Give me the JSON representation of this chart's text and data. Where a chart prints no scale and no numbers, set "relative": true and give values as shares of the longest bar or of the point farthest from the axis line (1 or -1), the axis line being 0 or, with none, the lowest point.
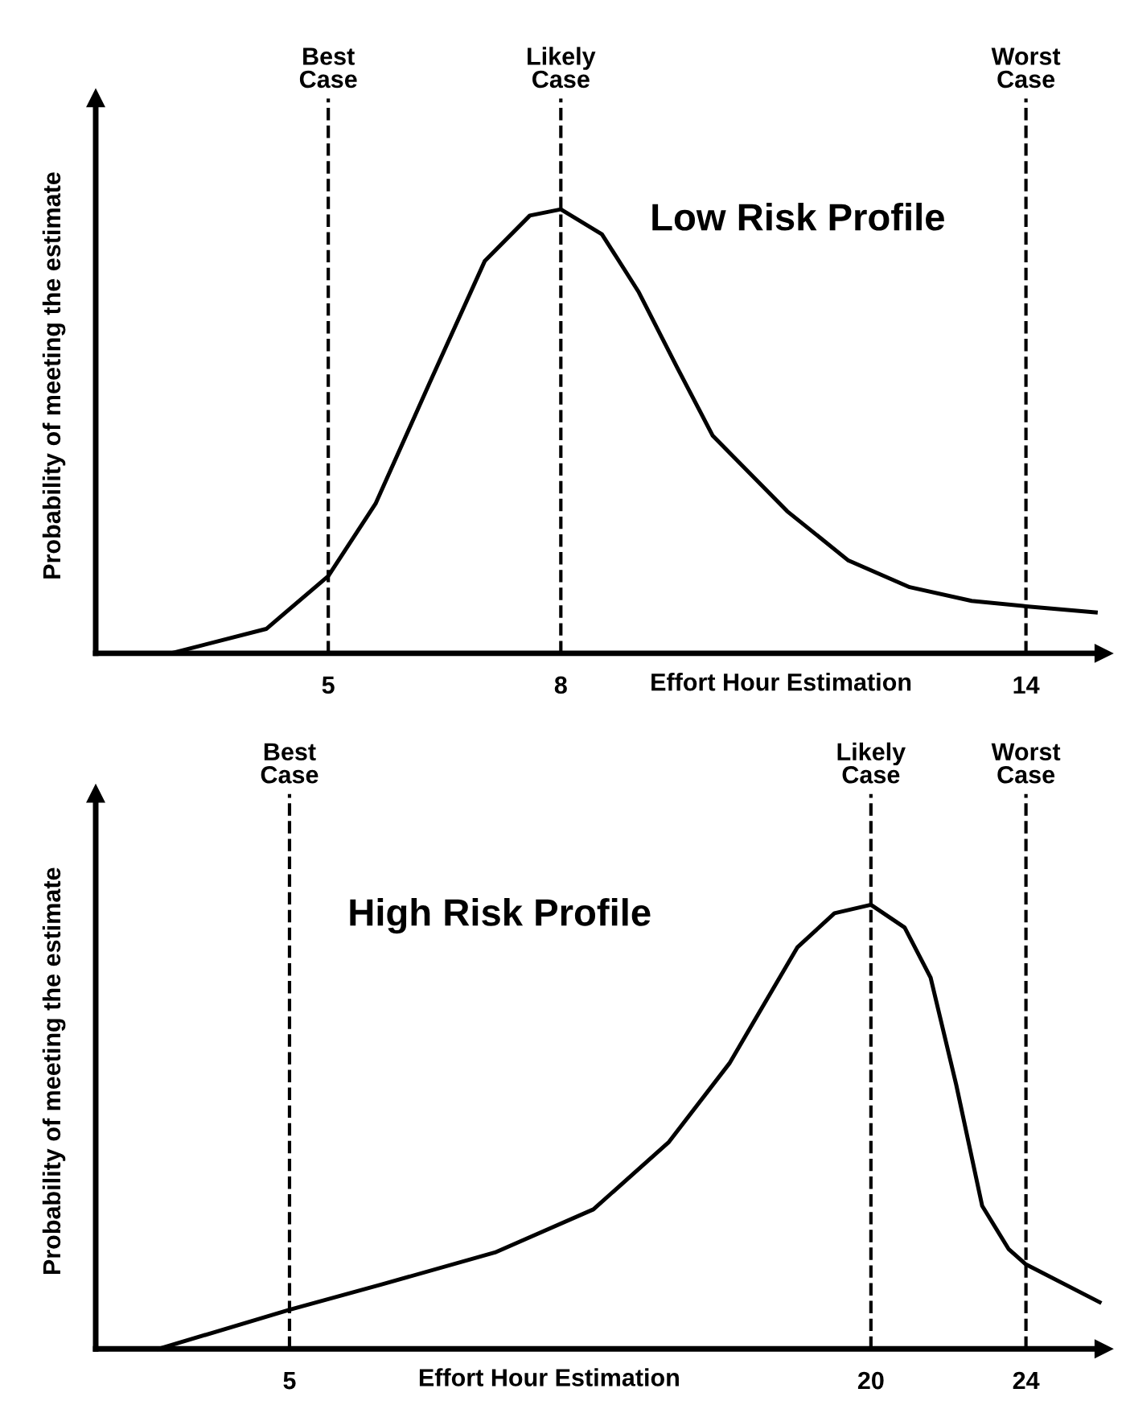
{
  "chart_data": [
    {
      "type": "line",
      "title": "Low Risk Profile",
      "xlabel": "Effort Hour Estimation",
      "ylabel": "Probability of meeting the estimate",
      "relative": true,
      "xlim": [
        2,
        15
      ],
      "xticks": [
        5,
        8,
        14
      ],
      "marker": "none",
      "line_style": "solid",
      "grid": false,
      "legend": false,
      "x": [
        2.97,
        4.2,
        5,
        5.61,
        6.31,
        7.02,
        7.6,
        8,
        8.53,
        9.0,
        9.5,
        9.96,
        10.92,
        11.71,
        12.5,
        13.3,
        14,
        14.9
      ],
      "series": [
        {
          "color": "#000000",
          "values": [
            0,
            0.055,
            0.174,
            0.337,
            0.61,
            0.884,
            0.986,
            1,
            0.944,
            0.815,
            0.644,
            0.49,
            0.32,
            0.209,
            0.149,
            0.118,
            0.106,
            0.092
          ]
        }
      ],
      "ref_lines": [
        {
          "axis": "x",
          "value": 5,
          "label": "Best Case",
          "line_style": "dashed",
          "color": "#000000"
        },
        {
          "axis": "x",
          "value": 8,
          "label": "Likely Case",
          "line_style": "dashed",
          "color": "#000000"
        },
        {
          "axis": "x",
          "value": 14,
          "label": "Worst Case",
          "line_style": "dashed",
          "color": "#000000"
        }
      ]
    },
    {
      "type": "line",
      "title": "High Risk Profile",
      "xlabel": "Effort Hour Estimation",
      "ylabel": "Probability of meeting the estimate",
      "relative": true,
      "xlim": [
        0,
        26
      ],
      "xticks": [
        5,
        20,
        24
      ],
      "marker": "none",
      "line_style": "solid",
      "grid": false,
      "legend": false,
      "x": [
        1.63,
        5,
        7.38,
        10.3,
        12.84,
        14.79,
        16.35,
        18.1,
        19.06,
        20,
        20.87,
        21.54,
        22.2,
        22.87,
        23.55,
        24,
        25.9
      ],
      "series": [
        {
          "color": "#000000",
          "values": [
            0,
            0.088,
            0.145,
            0.217,
            0.314,
            0.466,
            0.643,
            0.904,
            0.981,
            1,
            0.949,
            0.836,
            0.595,
            0.322,
            0.225,
            0.19,
            0.105
          ]
        }
      ],
      "ref_lines": [
        {
          "axis": "x",
          "value": 5,
          "label": "Best Case",
          "line_style": "dashed",
          "color": "#000000"
        },
        {
          "axis": "x",
          "value": 20,
          "label": "Likely Case",
          "line_style": "dashed",
          "color": "#000000"
        },
        {
          "axis": "x",
          "value": 24,
          "label": "Worst Case",
          "line_style": "dashed",
          "color": "#000000"
        }
      ]
    }
  ]
}
